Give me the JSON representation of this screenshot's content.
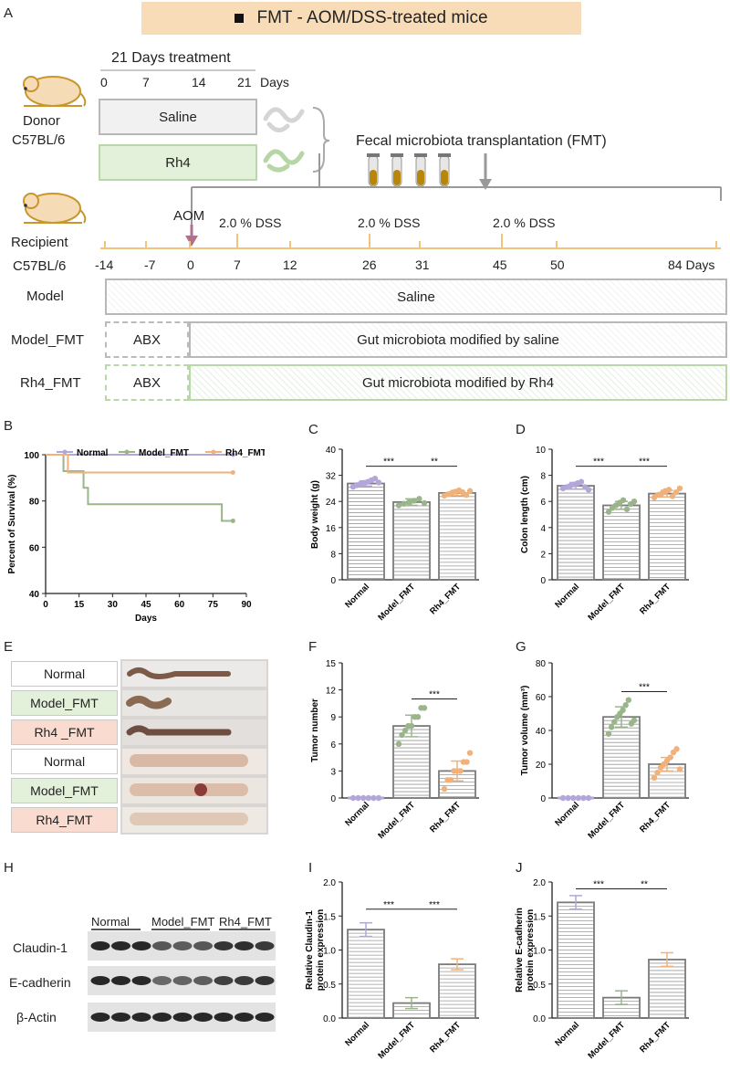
{
  "panels": {
    "A": "A",
    "B": "B",
    "C": "C",
    "D": "D",
    "E": "E",
    "F": "F",
    "G": "G",
    "H": "H",
    "I": "I",
    "J": "J"
  },
  "title": "FMT - AOM/DSS-treated mice",
  "donor": {
    "treatment_label": "21 Days treatment",
    "ticks": [
      "0",
      "7",
      "14",
      "21"
    ],
    "days_unit": "Days",
    "saline": "Saline",
    "rh4": "Rh4",
    "name1": "Donor",
    "name2": "C57BL/6",
    "fmt_label": "Fecal microbiota transplantation (FMT)"
  },
  "recipient": {
    "name1": "Recipient",
    "name2": "C57BL/6",
    "aom": "AOM",
    "dss": [
      "2.0 % DSS",
      "2.0 % DSS",
      "2.0 % DSS"
    ],
    "ticks": [
      "-14",
      "-7",
      "0",
      "7",
      "12",
      "26",
      "31",
      "45",
      "50",
      "84 Days"
    ],
    "groups": [
      {
        "label": "Model",
        "abx": "",
        "bar": "Saline"
      },
      {
        "label": "Model_FMT",
        "abx": "ABX",
        "bar": "Gut microbiota modified by saline"
      },
      {
        "label": "Rh4_FMT",
        "abx": "ABX",
        "bar": "Gut microbiota modified by Rh4"
      }
    ]
  },
  "colors": {
    "normal": "#b3a6d9",
    "model": "#9bb58a",
    "rh4": "#f0b27a",
    "bar_edge": "#7a7a7a",
    "stripe": "#9a9a9a"
  },
  "photo_labels": [
    "Normal",
    "Model_FMT",
    "Rh4 _FMT",
    "Normal",
    "Model_FMT",
    "Rh4_FMT"
  ],
  "western": {
    "groups": [
      "Normal",
      "Model_FMT",
      "Rh4_FMT"
    ],
    "rows": [
      "Claudin-1",
      "E-cadherin",
      "β-Actin"
    ]
  },
  "chart_data": [
    {
      "panel": "B",
      "type": "line",
      "title": "",
      "xlabel": "Days",
      "ylabel": "Percent of Survival (%)",
      "xlim": [
        0,
        90
      ],
      "ylim": [
        40,
        100
      ],
      "xticks": [
        "0",
        "15",
        "30",
        "45",
        "60",
        "75",
        "90"
      ],
      "yticks": [
        "40",
        "60",
        "80",
        "100"
      ],
      "legend": [
        "Normal",
        "Model_FMT",
        "Rh4_FMT"
      ],
      "series": [
        {
          "name": "Normal",
          "points": [
            [
              0,
              100
            ],
            [
              84,
              100
            ]
          ]
        },
        {
          "name": "Model_FMT",
          "points": [
            [
              0,
              100
            ],
            [
              8,
              100
            ],
            [
              8,
              92.9
            ],
            [
              17,
              92.9
            ],
            [
              17,
              85.7
            ],
            [
              19,
              85.7
            ],
            [
              19,
              78.6
            ],
            [
              79,
              78.6
            ],
            [
              79,
              71.4
            ],
            [
              84,
              71.4
            ]
          ]
        },
        {
          "name": "Rh4_FMT",
          "points": [
            [
              0,
              100
            ],
            [
              10,
              100
            ],
            [
              10,
              92.3
            ],
            [
              84,
              92.3
            ]
          ]
        }
      ]
    },
    {
      "panel": "C",
      "type": "bar",
      "ylabel": "Body weight (g)",
      "categories": [
        "Normal",
        "Model_FMT",
        "Rh4_FMT"
      ],
      "values": [
        29.5,
        23.8,
        26.6
      ],
      "errors": [
        0.8,
        1.0,
        0.8
      ],
      "ylim": [
        0,
        40
      ],
      "yticks": [
        "0",
        "8",
        "16",
        "24",
        "32",
        "40"
      ],
      "points": [
        [
          28.5,
          29.0,
          29.4,
          29.7,
          30.0,
          30.5,
          31.0,
          29.8
        ],
        [
          22.8,
          23.3,
          23.8,
          24.2,
          24.8,
          23.5
        ],
        [
          25.8,
          26.2,
          26.6,
          27.0,
          27.4,
          26.8,
          26.0,
          27.2
        ]
      ],
      "sig": [
        {
          "a": 0,
          "b": 1,
          "text": "***",
          "y": 34.8
        },
        {
          "a": 1,
          "b": 2,
          "text": "**",
          "y": 34.8
        }
      ]
    },
    {
      "panel": "D",
      "type": "bar",
      "ylabel": "Colon length (cm)",
      "categories": [
        "Normal",
        "Model_FMT",
        "Rh4_FMT"
      ],
      "values": [
        7.2,
        5.7,
        6.6
      ],
      "errors": [
        0.25,
        0.3,
        0.25
      ],
      "ylim": [
        0,
        10
      ],
      "yticks": [
        "0",
        "2",
        "4",
        "6",
        "8",
        "10"
      ],
      "points": [
        [
          7.0,
          7.1,
          7.2,
          7.3,
          7.4,
          7.5,
          7.1,
          6.9
        ],
        [
          5.2,
          5.5,
          5.7,
          5.9,
          6.1,
          5.4,
          5.8,
          6.0
        ],
        [
          6.3,
          6.5,
          6.6,
          6.8,
          6.9,
          6.4,
          6.7,
          7.0
        ]
      ],
      "sig": [
        {
          "a": 0,
          "b": 1,
          "text": "***",
          "y": 8.7
        },
        {
          "a": 1,
          "b": 2,
          "text": "***",
          "y": 8.7
        }
      ]
    },
    {
      "panel": "F",
      "type": "bar",
      "ylabel": "Tumor number",
      "categories": [
        "Normal",
        "Model_FMT",
        "Rh4_FMT"
      ],
      "values": [
        0,
        8.0,
        3.0
      ],
      "errors": [
        0,
        1.2,
        1.1
      ],
      "ylim": [
        0,
        15
      ],
      "yticks": [
        "0",
        "3",
        "6",
        "9",
        "12",
        "15"
      ],
      "points": [
        [
          0,
          0,
          0,
          0,
          0,
          0
        ],
        [
          6,
          7,
          7.5,
          8,
          8,
          9,
          9,
          10,
          10
        ],
        [
          1,
          2,
          2,
          3,
          3,
          3,
          4,
          4,
          5
        ]
      ],
      "sig": [
        {
          "a": 1,
          "b": 2,
          "text": "***",
          "y": 11.0
        }
      ]
    },
    {
      "panel": "G",
      "type": "bar",
      "ylabel": "Tumor volume (mm³)",
      "categories": [
        "Normal",
        "Model_FMT",
        "Rh4_FMT"
      ],
      "values": [
        0,
        48,
        20
      ],
      "errors": [
        0,
        6,
        4
      ],
      "ylim": [
        0,
        80
      ],
      "yticks": [
        "0",
        "20",
        "40",
        "60",
        "80"
      ],
      "points": [
        [
          0,
          0,
          0,
          0,
          0,
          0
        ],
        [
          38,
          42,
          45,
          48,
          50,
          52,
          55,
          58,
          44,
          46
        ],
        [
          12,
          15,
          18,
          20,
          22,
          24,
          27,
          29,
          17
        ]
      ],
      "sig": [
        {
          "a": 1,
          "b": 2,
          "text": "***",
          "y": 63
        }
      ]
    },
    {
      "panel": "I",
      "type": "bar",
      "ylabel": "Relative Claudin-1 protein expression",
      "categories": [
        "Normal",
        "Model_FMT",
        "Rh4_FMT"
      ],
      "values": [
        1.3,
        0.22,
        0.79
      ],
      "errors": [
        0.1,
        0.08,
        0.08
      ],
      "ylim": [
        0,
        2.0
      ],
      "yticks": [
        "0.0",
        "0.5",
        "1.0",
        "1.5",
        "2.0"
      ],
      "points": [
        [],
        [],
        []
      ],
      "sig": [
        {
          "a": 0,
          "b": 1,
          "text": "***",
          "y": 1.6
        },
        {
          "a": 1,
          "b": 2,
          "text": "***",
          "y": 1.6
        }
      ]
    },
    {
      "panel": "J",
      "type": "bar",
      "ylabel": "Relative E-cadherin protein expression",
      "categories": [
        "Normal",
        "Model_FMT",
        "Rh4_FMT"
      ],
      "values": [
        1.7,
        0.3,
        0.86
      ],
      "errors": [
        0.1,
        0.1,
        0.1
      ],
      "ylim": [
        0,
        2.0
      ],
      "yticks": [
        "0.0",
        "0.5",
        "1.0",
        "1.5",
        "2.0"
      ],
      "points": [
        [],
        [],
        []
      ],
      "sig": [
        {
          "a": 0,
          "b": 1,
          "text": "***",
          "y": 1.9
        },
        {
          "a": 1,
          "b": 2,
          "text": "**",
          "y": 1.9
        }
      ]
    }
  ]
}
